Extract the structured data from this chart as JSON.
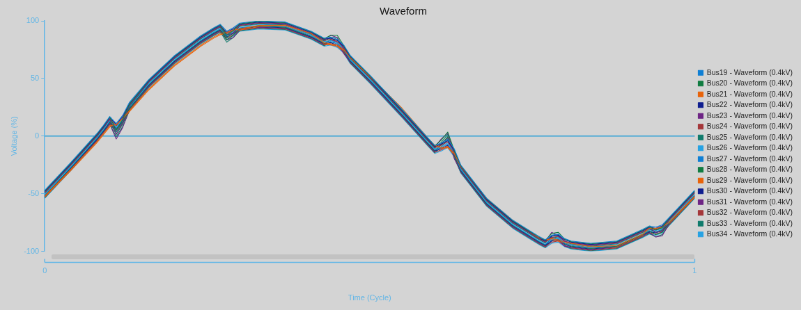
{
  "chart_data": {
    "type": "line",
    "title": "Waveform",
    "xlabel": "Time (Cycle)",
    "ylabel": "Voltage (%)",
    "x": [
      0,
      0.04,
      0.08,
      0.09,
      0.1,
      0.11,
      0.12,
      0.13,
      0.16,
      0.2,
      0.24,
      0.26,
      0.27,
      0.28,
      0.29,
      0.3,
      0.33,
      0.37,
      0.41,
      0.43,
      0.44,
      0.45,
      0.46,
      0.47,
      0.5,
      0.55,
      0.59,
      0.6,
      0.61,
      0.62,
      0.63,
      0.64,
      0.68,
      0.72,
      0.76,
      0.77,
      0.78,
      0.79,
      0.8,
      0.81,
      0.84,
      0.88,
      0.92,
      0.93,
      0.94,
      0.95,
      0.96,
      1
    ],
    "xlim": [
      0,
      1
    ],
    "xticks": [
      0,
      1
    ],
    "ylim": [
      -100,
      100
    ],
    "yticks": [
      -100,
      -50,
      0,
      50,
      100
    ],
    "grid": false,
    "legend": "right",
    "marker": "none",
    "line_style": "solid",
    "ref_lines": [
      {
        "axis": "y",
        "value": 0,
        "color": "#2a9fd6"
      }
    ],
    "series": [
      {
        "name": "Bus19 - Waveform (0.4kV)",
        "color": "#0f7fd4",
        "values": [
          -47,
          -23,
          2,
          9,
          17,
          11,
          18,
          29,
          49,
          70,
          87,
          94,
          97,
          91,
          94,
          98,
          100,
          99,
          91,
          85,
          86,
          84,
          79,
          70,
          53,
          23,
          -2,
          -8,
          -6,
          -3,
          -11,
          -25,
          -54,
          -73,
          -87,
          -90,
          -86,
          -85,
          -89,
          -91,
          -93,
          -91,
          -81,
          -78,
          -79,
          -77,
          -71,
          -47
        ]
      },
      {
        "name": "Bus20 - Waveform (0.4kV)",
        "color": "#107c41",
        "values": [
          -47.5,
          -23.5,
          1.5,
          8.5,
          16.5,
          5.5,
          14.5,
          27.5,
          48.5,
          69.5,
          86.5,
          93.5,
          96.5,
          87.5,
          91.5,
          97.5,
          99.5,
          98.5,
          90.5,
          84.5,
          87.5,
          87.5,
          78.5,
          69.5,
          52.5,
          22.5,
          -2.5,
          -8.5,
          -3.5,
          3.5,
          -12.5,
          -25.5,
          -54.5,
          -73.5,
          -87.5,
          -90.5,
          -84.5,
          -83.5,
          -89.5,
          -91.5,
          -93.5,
          -91.5,
          -81.5,
          -78.5,
          -81.5,
          -79.5,
          -71.5,
          -47.5
        ]
      },
      {
        "name": "Bus21 - Waveform (0.4kV)",
        "color": "#e8630a",
        "values": [
          -52,
          -29,
          -5,
          2,
          9,
          10,
          15,
          22,
          41,
          62,
          79,
          86,
          89,
          90,
          92,
          93,
          96,
          96,
          89,
          81,
          80,
          79,
          75,
          68,
          52,
          24,
          -2,
          -8,
          -10,
          -9,
          -15,
          -26,
          -54,
          -73,
          -88,
          -90,
          -89,
          -90,
          -92,
          -93,
          -96,
          -95,
          -85,
          -80,
          -80,
          -79,
          -75,
          -52
        ]
      },
      {
        "name": "Bus22 - Waveform (0.4kV)",
        "color": "#0f1e8f",
        "values": [
          -48,
          -24,
          1,
          8,
          16,
          10,
          17,
          28,
          48,
          69,
          86,
          93,
          96,
          90,
          93,
          97,
          99,
          98,
          90,
          84,
          85,
          83,
          78,
          69,
          52,
          22,
          -3,
          -9,
          -7,
          -4,
          -12,
          -26,
          -55,
          -74,
          -88,
          -91,
          -87,
          -86,
          -90,
          -92,
          -94,
          -92,
          -82,
          -79,
          -80,
          -78,
          -72,
          -48
        ]
      },
      {
        "name": "Bus23 - Waveform (0.4kV)",
        "color": "#6e2585",
        "values": [
          -48.5,
          -24.5,
          0.5,
          7.5,
          14.5,
          1.5,
          11.5,
          26.5,
          47.5,
          68.5,
          85.5,
          92.5,
          95.5,
          87.5,
          89.5,
          96.5,
          98.5,
          97.5,
          89.5,
          83.5,
          87.5,
          85.5,
          75.5,
          68.5,
          51.5,
          21.5,
          -3.5,
          -9.5,
          -2.5,
          2.5,
          -15.5,
          -26.5,
          -55.5,
          -74.5,
          -88.5,
          -91.5,
          -83.5,
          -86.5,
          -91.5,
          -92.5,
          -94.5,
          -92.5,
          -82.5,
          -79.5,
          -83.5,
          -82.5,
          -72.5,
          -48.5
        ]
      },
      {
        "name": "Bus24 - Waveform (0.4kV)",
        "color": "#a4373a",
        "values": [
          -49,
          -25,
          0,
          7,
          15,
          9,
          16,
          27,
          47,
          68,
          85,
          92,
          95,
          89,
          92,
          96,
          98,
          97,
          89,
          83,
          84,
          82,
          77,
          68,
          51,
          21,
          -4,
          -10,
          -8,
          -5,
          -13,
          -27,
          -56,
          -75,
          -89,
          -92,
          -88,
          -87,
          -91,
          -93,
          -95,
          -93,
          -83,
          -80,
          -81,
          -79,
          -73,
          -49
        ]
      },
      {
        "name": "Bus25 - Waveform (0.4kV)",
        "color": "#0f7b6c",
        "values": [
          -49.5,
          -25.5,
          -0.5,
          6.5,
          14.5,
          3.5,
          12.5,
          25.5,
          46.5,
          67.5,
          84.5,
          91.5,
          94.5,
          85.5,
          89.5,
          95.5,
          97.5,
          96.5,
          88.5,
          82.5,
          85.5,
          85.5,
          76.5,
          67.5,
          50.5,
          20.5,
          -4.5,
          -10.5,
          -5.5,
          1.5,
          -14.5,
          -27.5,
          -56.5,
          -75.5,
          -89.5,
          -92.5,
          -86.5,
          -85.5,
          -91.5,
          -93.5,
          -95.5,
          -93.5,
          -83.5,
          -80.5,
          -83.5,
          -81.5,
          -73.5,
          -49.5
        ]
      },
      {
        "name": "Bus26 - Waveform (0.4kV)",
        "color": "#27a2e3",
        "values": [
          -50,
          -26,
          -1,
          6,
          14,
          8,
          15,
          26,
          46,
          67,
          84,
          91,
          94,
          88,
          91,
          95,
          97,
          96,
          88,
          82,
          83,
          81,
          76,
          67,
          50,
          20,
          -5,
          -11,
          -9,
          -6,
          -14,
          -28,
          -57,
          -76,
          -90,
          -93,
          -89,
          -88,
          -92,
          -94,
          -96,
          -94,
          -84,
          -81,
          -82,
          -80,
          -74,
          -50
        ]
      },
      {
        "name": "Bus27 - Waveform (0.4kV)",
        "color": "#0f7fd4",
        "values": [
          -51,
          -27,
          -2,
          5,
          13,
          7,
          14,
          25,
          45,
          66,
          83,
          90,
          93,
          87,
          90,
          94,
          96,
          95,
          87,
          81,
          82,
          80,
          75,
          66,
          49,
          19,
          -6,
          -12,
          -10,
          -7,
          -15,
          -29,
          -58,
          -77,
          -91,
          -94,
          -90,
          -89,
          -93,
          -95,
          -97,
          -95,
          -85,
          -82,
          -83,
          -81,
          -75,
          -51
        ]
      },
      {
        "name": "Bus28 - Waveform (0.4kV)",
        "color": "#107c41",
        "values": [
          -51.5,
          -27.5,
          -2.5,
          4.5,
          12.5,
          1.5,
          10.5,
          23.5,
          44.5,
          65.5,
          82.5,
          89.5,
          92.5,
          83.5,
          87.5,
          93.5,
          95.5,
          94.5,
          86.5,
          80.5,
          83.5,
          83.5,
          74.5,
          65.5,
          48.5,
          18.5,
          -6.5,
          -12.5,
          -7.5,
          -0.5,
          -16.5,
          -29.5,
          -58.5,
          -77.5,
          -91.5,
          -94.5,
          -88.5,
          -87.5,
          -93.5,
          -95.5,
          -97.5,
          -95.5,
          -85.5,
          -82.5,
          -85.5,
          -83.5,
          -75.5,
          -51.5
        ]
      },
      {
        "name": "Bus29 - Waveform (0.4kV)",
        "color": "#e8630a",
        "values": [
          -53,
          -30,
          -6,
          1,
          8,
          9,
          14,
          21,
          40,
          61,
          78,
          85,
          88,
          89,
          91,
          92,
          95,
          95,
          88,
          80,
          79,
          78,
          74,
          67,
          51,
          22,
          -3,
          -9,
          -11,
          -10,
          -16,
          -27,
          -55,
          -74,
          -89,
          -91,
          -90,
          -91,
          -93,
          -94,
          -97,
          -96,
          -86,
          -81,
          -81,
          -80,
          -76,
          -53
        ]
      },
      {
        "name": "Bus30 - Waveform (0.4kV)",
        "color": "#0f1e8f",
        "values": [
          -52,
          -28,
          -3,
          4,
          12,
          6,
          13,
          24,
          44,
          65,
          82,
          89,
          92,
          86,
          89,
          93,
          95,
          94,
          86,
          80,
          81,
          79,
          74,
          65,
          48,
          18,
          -7,
          -13,
          -11,
          -8,
          -16,
          -30,
          -59,
          -78,
          -92,
          -95,
          -91,
          -90,
          -94,
          -96,
          -98,
          -96,
          -86,
          -83,
          -84,
          -82,
          -76,
          -52
        ]
      },
      {
        "name": "Bus31 - Waveform (0.4kV)",
        "color": "#6e2585",
        "values": [
          -52.5,
          -28.5,
          -3.5,
          3.5,
          10.5,
          -2.5,
          7.5,
          22.5,
          43.5,
          64.5,
          81.5,
          88.5,
          91.5,
          83.5,
          85.5,
          92.5,
          94.5,
          93.5,
          85.5,
          79.5,
          83.5,
          81.5,
          71.5,
          64.5,
          47.5,
          17.5,
          -7.5,
          -13.5,
          -6.5,
          -1.5,
          -19.5,
          -30.5,
          -59.5,
          -78.5,
          -92.5,
          -95.5,
          -87.5,
          -90.5,
          -95.5,
          -96.5,
          -98.5,
          -96.5,
          -86.5,
          -83.5,
          -87.5,
          -86.5,
          -76.5,
          -52.5
        ]
      },
      {
        "name": "Bus32 - Waveform (0.4kV)",
        "color": "#a4373a",
        "values": [
          -53,
          -29,
          -4,
          3,
          11,
          5,
          12,
          23,
          43,
          64,
          81,
          88,
          91,
          85,
          88,
          92,
          94,
          93,
          85,
          79,
          80,
          78,
          73,
          64,
          47,
          17,
          -8,
          -14,
          -12,
          -9,
          -17,
          -31,
          -60,
          -79,
          -93,
          -96,
          -92,
          -91,
          -95,
          -97,
          -99,
          -97,
          -87,
          -84,
          -85,
          -83,
          -77,
          -53
        ]
      },
      {
        "name": "Bus33 - Waveform (0.4kV)",
        "color": "#0f7b6c",
        "values": [
          -53.5,
          -29.5,
          -4.5,
          2.5,
          10.5,
          -0.5,
          8.5,
          21.5,
          42.5,
          63.5,
          80.5,
          87.5,
          90.5,
          81.5,
          85.5,
          91.5,
          93.5,
          92.5,
          84.5,
          78.5,
          81.5,
          81.5,
          72.5,
          63.5,
          46.5,
          16.5,
          -8.5,
          -14.5,
          -9.5,
          -2.5,
          -18.5,
          -31.5,
          -60.5,
          -79.5,
          -93.5,
          -96.5,
          -90.5,
          -89.5,
          -95.5,
          -97.5,
          -99.5,
          -97.5,
          -87.5,
          -84.5,
          -87.5,
          -85.5,
          -77.5,
          -53.5
        ]
      },
      {
        "name": "Bus34 - Waveform (0.4kV)",
        "color": "#27a2e3",
        "values": [
          -54,
          -30,
          -5,
          2,
          10,
          4,
          11,
          22,
          42,
          63,
          80,
          87,
          90,
          84,
          87,
          91,
          93,
          92,
          84,
          78,
          79,
          77,
          72,
          63,
          46,
          16,
          -9,
          -15,
          -13,
          -10,
          -18,
          -32,
          -61,
          -80,
          -94,
          -97,
          -93,
          -92,
          -96,
          -98,
          -100,
          -98,
          -88,
          -85,
          -86,
          -84,
          -78,
          -54
        ]
      }
    ]
  }
}
